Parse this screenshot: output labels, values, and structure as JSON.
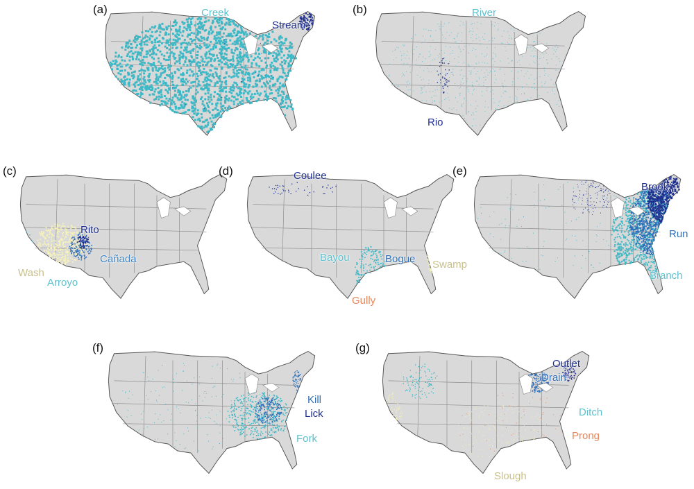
{
  "colors": {
    "land": "#d9d9d9",
    "border": "#8a8a8a",
    "outline": "#555555",
    "dark_blue": "#1f2f8f",
    "mid_blue": "#2f6fb8",
    "cyan": "#3fb8c6",
    "light_cyan": "#5cc2cf",
    "pale_yellow": "#f6f1b8",
    "orange": "#e8875a"
  },
  "panels": [
    {
      "id": "a",
      "label": "(a)",
      "features": [
        {
          "text": "Creek",
          "color": "#5cc2cf"
        },
        {
          "text": "Stream",
          "color": "#1f2f8f"
        }
      ]
    },
    {
      "id": "b",
      "label": "(b)",
      "features": [
        {
          "text": "River",
          "color": "#5cc2cf"
        },
        {
          "text": "Rio",
          "color": "#1f2f8f"
        }
      ]
    },
    {
      "id": "c",
      "label": "(c)",
      "features": [
        {
          "text": "Rito",
          "color": "#1f2f8f"
        },
        {
          "text": "Cañada",
          "color": "#3f86c6"
        },
        {
          "text": "Wash",
          "color": "#c8c08a"
        },
        {
          "text": "Arroyo",
          "color": "#5cc2cf"
        }
      ]
    },
    {
      "id": "d",
      "label": "(d)",
      "features": [
        {
          "text": "Coulee",
          "color": "#1f2f8f"
        },
        {
          "text": "Bayou",
          "color": "#5cc2cf"
        },
        {
          "text": "Bogue",
          "color": "#2f6fb8"
        },
        {
          "text": "Swamp",
          "color": "#c8c08a"
        },
        {
          "text": "Gully",
          "color": "#e8875a"
        }
      ]
    },
    {
      "id": "e",
      "label": "(e)",
      "features": [
        {
          "text": "Brook",
          "color": "#1f2f8f"
        },
        {
          "text": "Run",
          "color": "#2f6fb8"
        },
        {
          "text": "Branch",
          "color": "#5cc2cf"
        }
      ]
    },
    {
      "id": "f",
      "label": "(f)",
      "features": [
        {
          "text": "Kill",
          "color": "#2f6fb8"
        },
        {
          "text": "Lick",
          "color": "#1f2f8f"
        },
        {
          "text": "Fork",
          "color": "#5cc2cf"
        }
      ]
    },
    {
      "id": "g",
      "label": "(g)",
      "features": [
        {
          "text": "Outlet",
          "color": "#1f2f8f"
        },
        {
          "text": "Drain",
          "color": "#2f6fb8"
        },
        {
          "text": "Ditch",
          "color": "#5cc2cf"
        },
        {
          "text": "Prong",
          "color": "#e8875a"
        },
        {
          "text": "Slough",
          "color": "#c8c08a"
        }
      ]
    }
  ]
}
